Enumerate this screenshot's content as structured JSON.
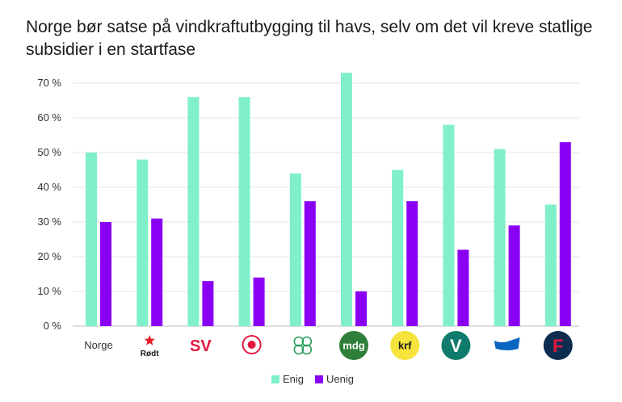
{
  "chart_data": {
    "type": "bar",
    "title": "Norge bør satse på vindkraftutbygging til havs, selv om det vil kreve statlige subsidier i en startfase",
    "categories": [
      "Norge",
      "Rødt",
      "SV",
      "Ap",
      "Sp",
      "MDG",
      "KrF",
      "V",
      "H",
      "FrP"
    ],
    "category_display": [
      {
        "kind": "text",
        "label": "Norge"
      },
      {
        "kind": "logo",
        "label": "Rødt",
        "bg": "none",
        "fg": "#e31b23"
      },
      {
        "kind": "logo",
        "label": "SV",
        "bg": "none",
        "fg": "#e3173e"
      },
      {
        "kind": "logo",
        "label": "",
        "bg": "none",
        "fg": "#e3173e"
      },
      {
        "kind": "logo",
        "label": "",
        "bg": "none",
        "fg": "#2a9d5c"
      },
      {
        "kind": "logo",
        "label": "mdg",
        "bg": "#2f7f3a",
        "fg": "#ffffff"
      },
      {
        "kind": "logo",
        "label": "krf",
        "bg": "#f6e33b",
        "fg": "#1a1a1a"
      },
      {
        "kind": "logo",
        "label": "V",
        "bg": "#0f7b6c",
        "fg": "#ffffff"
      },
      {
        "kind": "logo",
        "label": "",
        "bg": "none",
        "fg": "#0a66c2"
      },
      {
        "kind": "logo",
        "label": "F",
        "bg": "#0c2d4f",
        "fg": "#e3173e"
      }
    ],
    "series": [
      {
        "name": "Enig",
        "color": "#7ff0c9",
        "values": [
          50,
          48,
          66,
          66,
          44,
          73,
          45,
          58,
          51,
          35
        ]
      },
      {
        "name": "Uenig",
        "color": "#8a00f5",
        "values": [
          30,
          31,
          13,
          14,
          36,
          10,
          36,
          22,
          29,
          53
        ]
      }
    ],
    "ylim": [
      0,
      70
    ],
    "yticks": [
      0,
      10,
      20,
      30,
      40,
      50,
      60,
      70
    ],
    "ytick_labels": [
      "0 %",
      "10 %",
      "20 %",
      "30 %",
      "40 %",
      "50 %",
      "60 %",
      "70 %"
    ],
    "grid": true,
    "legend": "bottom-center",
    "xlabel": "",
    "ylabel": ""
  }
}
